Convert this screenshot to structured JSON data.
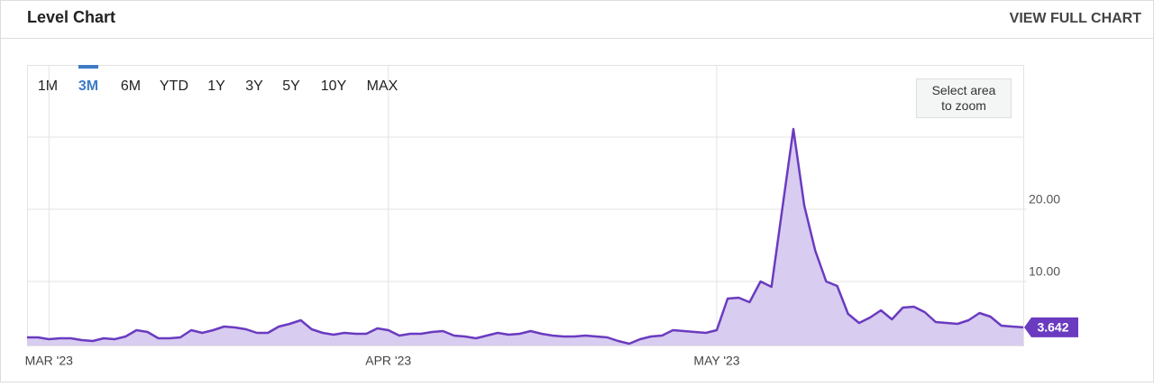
{
  "header": {
    "title": "Level Chart",
    "link": "VIEW FULL CHART"
  },
  "range_buttons": [
    "1M",
    "3M",
    "6M",
    "YTD",
    "1Y",
    "3Y",
    "5Y",
    "10Y",
    "MAX"
  ],
  "selected_range_index": 1,
  "zoom_hint": "Select area to zoom",
  "chart_data": {
    "type": "area",
    "x": [
      0,
      1,
      2,
      3,
      4,
      5,
      6,
      7,
      8,
      9,
      10,
      11,
      12,
      13,
      14,
      15,
      16,
      17,
      18,
      19,
      20,
      21,
      22,
      23,
      24,
      25,
      26,
      27,
      28,
      29,
      30,
      31,
      32,
      33,
      34,
      35,
      36,
      37,
      38,
      39,
      40,
      41,
      42,
      43,
      44,
      45,
      46,
      47,
      48,
      49,
      50,
      51,
      52,
      53,
      54,
      55,
      56,
      57,
      58,
      59,
      60,
      61,
      62,
      63,
      64,
      65,
      66,
      67,
      68,
      69,
      70,
      71,
      72,
      73,
      74,
      75,
      76,
      77,
      78,
      79,
      80,
      81,
      82,
      83,
      84,
      85,
      86,
      87,
      88,
      89,
      90,
      91
    ],
    "series": [
      {
        "color": "#6a3bc0",
        "fill": "#d8ccf0",
        "values": [
          2.25,
          2.25,
          2.0,
          2.13,
          2.13,
          1.88,
          1.75,
          2.13,
          2.0,
          2.38,
          3.25,
          3.0,
          2.13,
          2.13,
          2.25,
          3.25,
          2.88,
          3.25,
          3.75,
          3.63,
          3.38,
          2.88,
          2.88,
          3.75,
          4.13,
          4.63,
          3.38,
          2.88,
          2.63,
          2.88,
          2.75,
          2.75,
          3.5,
          3.25,
          2.5,
          2.75,
          2.75,
          3.0,
          3.13,
          2.5,
          2.38,
          2.13,
          2.5,
          2.88,
          2.63,
          2.75,
          3.13,
          2.75,
          2.5,
          2.38,
          2.38,
          2.5,
          2.38,
          2.25,
          1.75,
          1.38,
          2.0,
          2.38,
          2.5,
          3.25,
          3.13,
          3.0,
          2.88,
          3.25,
          7.63,
          7.75,
          7.13,
          10.0,
          9.25,
          20.25,
          31.13,
          20.5,
          14.25,
          10.0,
          9.38,
          5.5,
          4.25,
          5.0,
          6.0,
          4.75,
          6.38,
          6.5,
          5.75,
          4.38,
          4.25,
          4.13,
          4.63,
          5.63,
          5.13,
          3.88,
          3.75,
          3.642
        ]
      }
    ],
    "xlim": [
      0,
      91
    ],
    "xticks": [
      {
        "value": 2,
        "label": "MAR '23"
      },
      {
        "value": 33,
        "label": "APR '23"
      },
      {
        "value": 63,
        "label": "MAY '23"
      }
    ],
    "ylim": [
      1,
      40
    ],
    "yticks": [
      {
        "value": 10,
        "label": "10.00"
      },
      {
        "value": 20,
        "label": "20.00"
      }
    ],
    "gridlines": [
      10,
      20,
      30
    ],
    "grid": true
  }
}
